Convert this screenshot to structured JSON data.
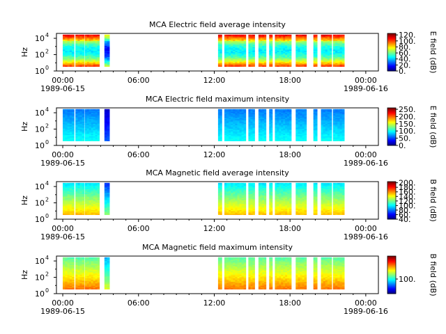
{
  "chart_data": [
    {
      "type": "heatmap",
      "title": "MCA  Electric field average intensity",
      "ylabel": "Hz",
      "colorbar_label": "E field (dB)",
      "colorbar_ticks": [
        "0.",
        "20.",
        "40.",
        "60.",
        "80.",
        "100.",
        "120."
      ],
      "colorbar_range": [
        0,
        125
      ],
      "colormap": "jet",
      "x_ticks": [
        "00:00",
        "06:00",
        "12:00",
        "18:00",
        "00:00"
      ],
      "x_dates": [
        "1989-06-15",
        "1989-06-16"
      ],
      "xlim_hours": [
        -0.5,
        25.0
      ],
      "y_ticks": [
        "10^0",
        "10^2",
        "10^4"
      ],
      "ylim_log10": [
        0,
        4.6
      ],
      "data_intervals_hours": [
        [
          0.0,
          0.9
        ],
        [
          1.0,
          1.7
        ],
        [
          1.75,
          2.9
        ],
        [
          3.3,
          3.7
        ],
        [
          12.3,
          12.6
        ],
        [
          12.8,
          14.5
        ],
        [
          14.7,
          15.2
        ],
        [
          15.5,
          16.1
        ],
        [
          16.35,
          16.6
        ],
        [
          16.8,
          18.1
        ],
        [
          18.45,
          19.3
        ],
        [
          19.85,
          20.15
        ],
        [
          20.45,
          21.3
        ],
        [
          21.4,
          22.3
        ]
      ],
      "intensity_profile": "high (orange/red) at low and high frequency, green-blue band mid-frequency",
      "intensity_low_dB": 30,
      "intensity_high_dB": 110
    },
    {
      "type": "heatmap",
      "title": "MCA  Electric field maximum intensity",
      "ylabel": "Hz",
      "colorbar_label": "E field (dB)",
      "colorbar_ticks": [
        "0.",
        "50.",
        "100.",
        "150.",
        "200.",
        "250."
      ],
      "colorbar_range": [
        0,
        260
      ],
      "colormap": "jet",
      "x_ticks": [
        "00:00",
        "06:00",
        "12:00",
        "18:00",
        "00:00"
      ],
      "x_dates": [
        "1989-06-15",
        "1989-06-16"
      ],
      "xlim_hours": [
        -0.5,
        25.0
      ],
      "y_ticks": [
        "10^0",
        "10^2",
        "10^4"
      ],
      "ylim_log10": [
        0,
        4.6
      ],
      "data_intervals_hours": [
        [
          0.0,
          0.9
        ],
        [
          1.0,
          1.7
        ],
        [
          1.75,
          2.9
        ],
        [
          3.3,
          3.7
        ],
        [
          12.3,
          12.6
        ],
        [
          12.8,
          14.5
        ],
        [
          14.7,
          15.2
        ],
        [
          15.5,
          16.1
        ],
        [
          16.35,
          16.6
        ],
        [
          16.8,
          18.1
        ],
        [
          18.45,
          19.3
        ],
        [
          19.85,
          20.15
        ],
        [
          20.45,
          21.3
        ],
        [
          21.4,
          22.3
        ]
      ],
      "intensity_profile": "cyan/light-blue dominant, blue patches at high frequency",
      "intensity_low_dB": 40,
      "intensity_high_dB": 120
    },
    {
      "type": "heatmap",
      "title": "MCA  Magnetic field average intensity",
      "ylabel": "Hz",
      "colorbar_label": "B field (dB)",
      "colorbar_ticks": [
        "40.",
        "60.",
        "80.",
        "100.",
        "120.",
        "140.",
        "160.",
        "180.",
        "200."
      ],
      "colorbar_range": [
        40,
        205
      ],
      "colormap": "jet",
      "x_ticks": [
        "00:00",
        "06:00",
        "12:00",
        "18:00",
        "00:00"
      ],
      "x_dates": [
        "1989-06-15",
        "1989-06-16"
      ],
      "xlim_hours": [
        -0.5,
        25.0
      ],
      "y_ticks": [
        "10^0",
        "10^2",
        "10^4"
      ],
      "ylim_log10": [
        0,
        4.6
      ],
      "data_intervals_hours": [
        [
          0.0,
          0.9
        ],
        [
          1.0,
          1.7
        ],
        [
          1.75,
          2.9
        ],
        [
          3.3,
          3.7
        ],
        [
          12.3,
          12.6
        ],
        [
          12.8,
          14.5
        ],
        [
          14.7,
          15.2
        ],
        [
          15.5,
          16.1
        ],
        [
          16.35,
          16.6
        ],
        [
          16.8,
          18.1
        ],
        [
          18.45,
          19.3
        ],
        [
          19.85,
          20.15
        ],
        [
          20.45,
          21.3
        ],
        [
          21.4,
          22.3
        ]
      ],
      "intensity_profile": "green-yellow at low frequency, cyan-blue at high frequency",
      "intensity_low_dB": 95,
      "intensity_high_dB": 160
    },
    {
      "type": "heatmap",
      "title": "MCA  Magnetic field maximum intensity",
      "ylabel": "Hz",
      "colorbar_label": "B field (dB)",
      "colorbar_ticks": [
        "100."
      ],
      "colorbar_range": [
        30,
        210
      ],
      "colormap": "jet",
      "x_ticks": [
        "00:00",
        "06:00",
        "12:00",
        "18:00",
        "00:00"
      ],
      "x_dates": [
        "1989-06-15",
        "1989-06-16"
      ],
      "xlim_hours": [
        -0.5,
        25.0
      ],
      "y_ticks": [
        "10^0",
        "10^2",
        "10^4"
      ],
      "ylim_log10": [
        0,
        4.6
      ],
      "data_intervals_hours": [
        [
          0.0,
          0.9
        ],
        [
          1.0,
          1.7
        ],
        [
          1.75,
          2.9
        ],
        [
          3.3,
          3.7
        ],
        [
          12.3,
          12.6
        ],
        [
          12.8,
          14.5
        ],
        [
          14.7,
          15.2
        ],
        [
          15.5,
          16.1
        ],
        [
          16.35,
          16.6
        ],
        [
          16.8,
          18.1
        ],
        [
          18.45,
          19.3
        ],
        [
          19.85,
          20.15
        ],
        [
          20.45,
          21.3
        ],
        [
          21.4,
          22.3
        ]
      ],
      "intensity_profile": "yellow at low frequency, green then cyan toward high frequency",
      "intensity_low_dB": 95,
      "intensity_high_dB": 170
    }
  ]
}
